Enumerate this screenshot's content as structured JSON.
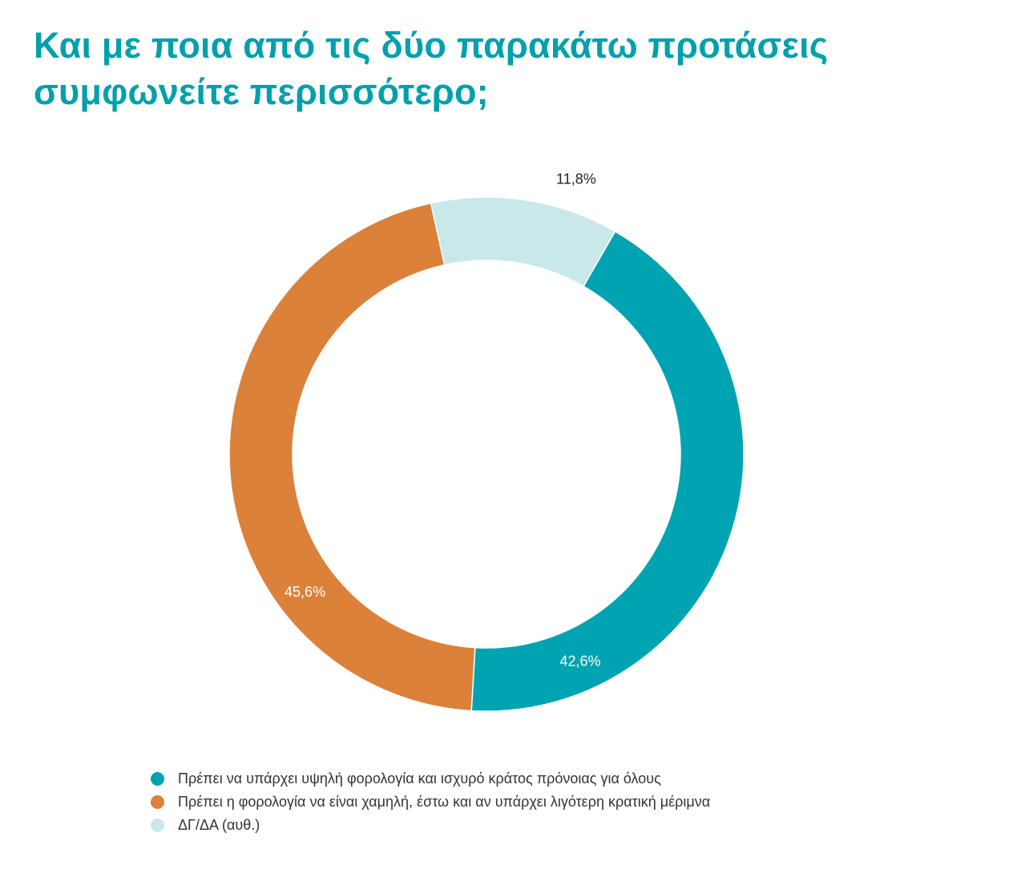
{
  "title": "Και με ποια από τις δύο παρακάτω προτάσεις συμφωνείτε περισσότερο;",
  "chart_data": {
    "type": "pie",
    "variant": "donut",
    "slices": [
      {
        "name": "Πρέπει να υπάρχει υψηλή φορολογία και ισχυρό κράτος πρόνοιας για όλους",
        "value": 42.6,
        "label": "42,6%",
        "color": "#00a3b1",
        "label_color": "#ffffff"
      },
      {
        "name": "Πρέπει η φορολογία να είναι χαμηλή, έστω και αν υπάρχει λιγότερη κρατική μέριμνα",
        "value": 45.6,
        "label": "45,6%",
        "color": "#db8139",
        "label_color": "#ffffff"
      },
      {
        "name": "ΔΓ/ΔΑ (αυθ.)",
        "value": 11.8,
        "label": "11,8%",
        "color": "#c8e8ea",
        "label_color": "#222222"
      }
    ],
    "start_angle_deg": 30,
    "direction": "clockwise",
    "legend_position": "bottom"
  }
}
